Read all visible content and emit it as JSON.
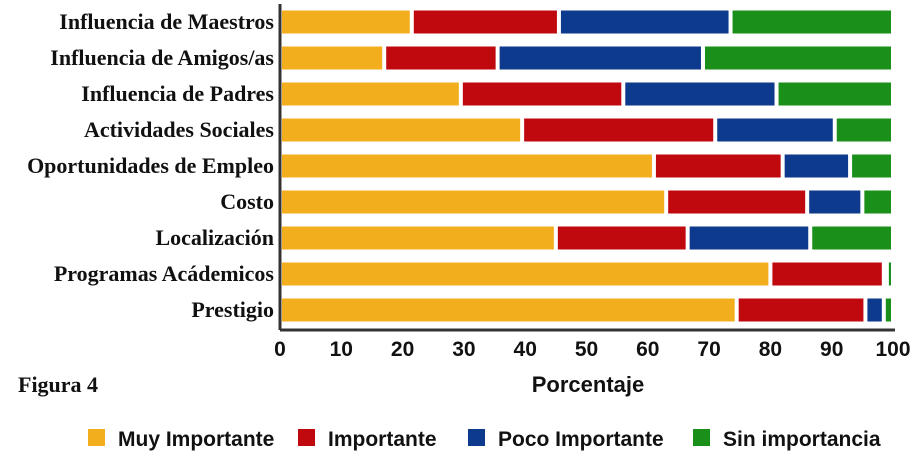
{
  "caption": "Figura 4",
  "chart_data": {
    "type": "bar",
    "orientation": "horizontal",
    "stacked": true,
    "title": "",
    "xlabel": "Porcentaje",
    "ylabel": "",
    "xlim": [
      0,
      100
    ],
    "xticks": [
      "0",
      "10",
      "20",
      "30",
      "40",
      "50",
      "60",
      "70",
      "80",
      "90",
      "100"
    ],
    "grid": false,
    "legend_position": "bottom",
    "categories": [
      "Influencia de Maestros",
      "Influencia de Amigos/as",
      "Influencia de Padres",
      "Actividades Sociales",
      "Oportunidades de Empleo",
      "Costo",
      "Localización",
      "Programas Acádemicos",
      "Prestigio"
    ],
    "series": [
      {
        "name": "Muy Importante",
        "color": "#f2ae1c",
        "values": [
          21.5,
          17,
          29.5,
          39.5,
          61,
          63,
          45,
          80,
          74.5
        ]
      },
      {
        "name": "Importante",
        "color": "#c0080f",
        "values": [
          24,
          18.5,
          26.5,
          31.5,
          21,
          23,
          21.5,
          18.5,
          21
        ]
      },
      {
        "name": "Poco Importante",
        "color": "#0d3a8c",
        "values": [
          28,
          33.5,
          25,
          19.5,
          11,
          9,
          20,
          0.5,
          3
        ]
      },
      {
        "name": "Sin importancia",
        "color": "#1a8f1a",
        "values": [
          26.5,
          31,
          19,
          9.5,
          7,
          5,
          13.5,
          1,
          1.5
        ]
      }
    ]
  }
}
